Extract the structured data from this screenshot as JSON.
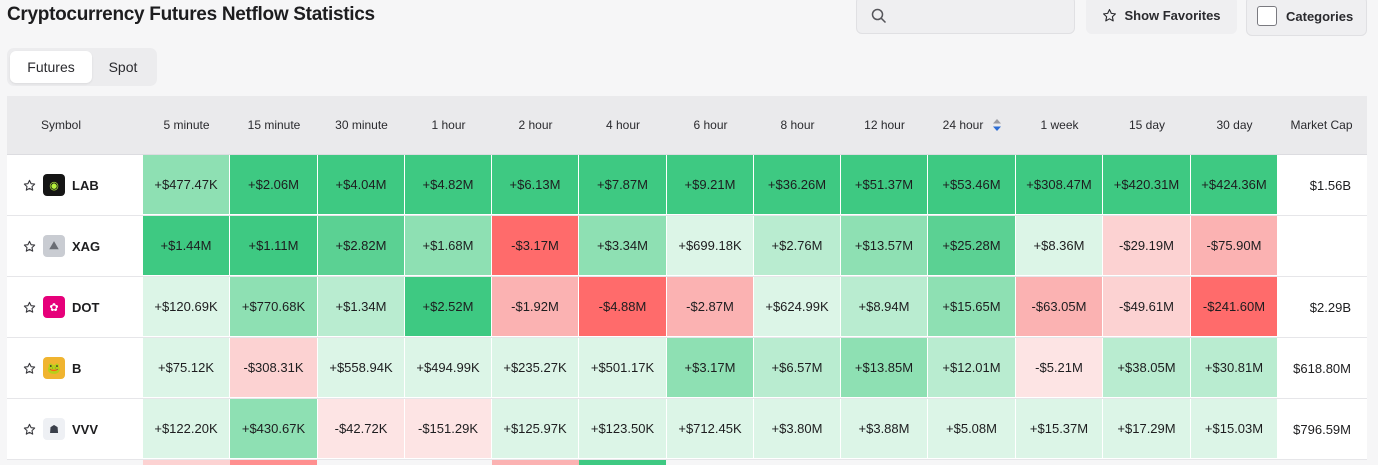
{
  "title": "Cryptocurrency Futures Netflow Statistics",
  "search": {
    "placeholder": ""
  },
  "buttons": {
    "favorites": "Show Favorites",
    "categories": "Categories"
  },
  "tabs": [
    "Futures",
    "Spot"
  ],
  "columns": [
    "Symbol",
    "5 minute",
    "15 minute",
    "30 minute",
    "1 hour",
    "2 hour",
    "4 hour",
    "6 hour",
    "8 hour",
    "12 hour",
    "24 hour",
    "1 week",
    "15 day",
    "30 day",
    "Market Cap"
  ],
  "colors": {
    "pos_strong": "#3ec982",
    "pos_high": "#5bd193",
    "pos_mid": "#8ee0b3",
    "pos_low": "#b9ecd0",
    "pos_faint": "#dcf5e7",
    "neg_strong": "#ff6b6b",
    "neg_high": "#ff8f8f",
    "neg_mid": "#fbb2b2",
    "neg_low": "#fcd2d2",
    "neg_faint": "#fde4e4"
  },
  "rows": [
    {
      "symbol": "LAB",
      "icon": "lab-logo-icon",
      "market_cap": "$1.56B",
      "values": [
        "+$477.47K",
        "+$2.06M",
        "+$4.04M",
        "+$4.82M",
        "+$6.13M",
        "+$7.87M",
        "+$9.21M",
        "+$36.26M",
        "+$51.37M",
        "+$53.46M",
        "+$308.47M",
        "+$420.31M",
        "+$424.36M"
      ],
      "shades": [
        "pos_mid",
        "pos_strong",
        "pos_strong",
        "pos_strong",
        "pos_strong",
        "pos_strong",
        "pos_strong",
        "pos_strong",
        "pos_strong",
        "pos_strong",
        "pos_strong",
        "pos_strong",
        "pos_strong"
      ]
    },
    {
      "symbol": "XAG",
      "icon": "xag-logo-icon",
      "market_cap": "",
      "values": [
        "+$1.44M",
        "+$1.11M",
        "+$2.82M",
        "+$1.68M",
        "-$3.17M",
        "+$3.34M",
        "+$699.18K",
        "+$2.76M",
        "+$13.57M",
        "+$25.28M",
        "+$8.36M",
        "-$29.19M",
        "-$75.90M"
      ],
      "shades": [
        "pos_strong",
        "pos_strong",
        "pos_high",
        "pos_mid",
        "neg_strong",
        "pos_mid",
        "pos_faint",
        "pos_low",
        "pos_mid",
        "pos_high",
        "pos_faint",
        "neg_low",
        "neg_mid"
      ]
    },
    {
      "symbol": "DOT",
      "icon": "dot-logo-icon",
      "market_cap": "$2.29B",
      "values": [
        "+$120.69K",
        "+$770.68K",
        "+$1.34M",
        "+$2.52M",
        "-$1.92M",
        "-$4.88M",
        "-$2.87M",
        "+$624.99K",
        "+$8.94M",
        "+$15.65M",
        "-$63.05M",
        "-$49.61M",
        "-$241.60M"
      ],
      "shades": [
        "pos_faint",
        "pos_mid",
        "pos_low",
        "pos_strong",
        "neg_mid",
        "neg_strong",
        "neg_mid",
        "pos_faint",
        "pos_low",
        "pos_mid",
        "neg_mid",
        "neg_low",
        "neg_strong"
      ]
    },
    {
      "symbol": "B",
      "icon": "b-logo-icon",
      "market_cap": "$618.80M",
      "values": [
        "+$75.12K",
        "-$308.31K",
        "+$558.94K",
        "+$494.99K",
        "+$235.27K",
        "+$501.17K",
        "+$3.17M",
        "+$6.57M",
        "+$13.85M",
        "+$12.01M",
        "-$5.21M",
        "+$38.05M",
        "+$30.81M"
      ],
      "shades": [
        "pos_faint",
        "neg_low",
        "pos_faint",
        "pos_faint",
        "pos_faint",
        "pos_faint",
        "pos_mid",
        "pos_low",
        "pos_mid",
        "pos_low",
        "neg_faint",
        "pos_low",
        "pos_low"
      ]
    },
    {
      "symbol": "VVV",
      "icon": "vvv-logo-icon",
      "market_cap": "$796.59M",
      "values": [
        "+$122.20K",
        "+$430.67K",
        "-$42.72K",
        "-$151.29K",
        "+$125.97K",
        "+$123.50K",
        "+$712.45K",
        "+$3.80M",
        "+$3.88M",
        "+$5.08M",
        "+$15.37M",
        "+$17.29M",
        "+$15.03M"
      ],
      "shades": [
        "pos_faint",
        "pos_mid",
        "neg_faint",
        "neg_faint",
        "pos_faint",
        "pos_faint",
        "pos_faint",
        "pos_faint",
        "pos_faint",
        "pos_faint",
        "pos_faint",
        "pos_faint",
        "pos_faint"
      ]
    }
  ]
}
